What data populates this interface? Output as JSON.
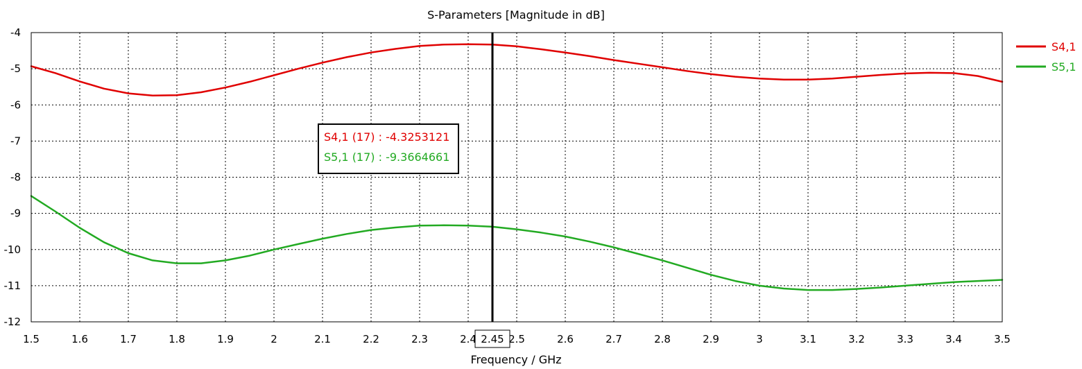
{
  "chart_data": {
    "type": "line",
    "title": "S-Parameters [Magnitude in dB]",
    "xlabel": "Frequency / GHz",
    "ylabel": "",
    "xlim": [
      1.5,
      3.5
    ],
    "ylim": [
      -12,
      -4
    ],
    "x_ticks": [
      1.5,
      1.6,
      1.7,
      1.8,
      1.9,
      2,
      2.1,
      2.2,
      2.3,
      2.4,
      2.5,
      2.6,
      2.7,
      2.8,
      2.9,
      3,
      3.1,
      3.2,
      3.3,
      3.4,
      3.5
    ],
    "x_tick_labels": [
      "1.5",
      "1.6",
      "1.7",
      "1.8",
      "1.9",
      "2",
      "2.1",
      "2.2",
      "2.3",
      "2.4",
      "2.5",
      "2.6",
      "2.7",
      "2.8",
      "2.9",
      "3",
      "3.1",
      "3.2",
      "3.3",
      "3.4",
      "3.5"
    ],
    "y_ticks": [
      -4,
      -5,
      -6,
      -7,
      -8,
      -9,
      -10,
      -11,
      -12
    ],
    "y_tick_labels": [
      "-4",
      "-5",
      "-6",
      "-7",
      "-8",
      "-9",
      "-10",
      "-11",
      "-12"
    ],
    "grid": true,
    "legend_position": "right",
    "series": [
      {
        "name": "S4,1",
        "color": "#e00000",
        "x": [
          1.5,
          1.55,
          1.6,
          1.65,
          1.7,
          1.75,
          1.8,
          1.85,
          1.9,
          1.95,
          2.0,
          2.05,
          2.1,
          2.15,
          2.2,
          2.25,
          2.3,
          2.35,
          2.4,
          2.45,
          2.5,
          2.55,
          2.6,
          2.65,
          2.7,
          2.75,
          2.8,
          2.85,
          2.9,
          2.95,
          3.0,
          3.05,
          3.1,
          3.15,
          3.2,
          3.25,
          3.3,
          3.35,
          3.4,
          3.45,
          3.5
        ],
        "values": [
          -4.93,
          -5.12,
          -5.35,
          -5.55,
          -5.68,
          -5.74,
          -5.73,
          -5.65,
          -5.52,
          -5.36,
          -5.18,
          -5.0,
          -4.83,
          -4.68,
          -4.55,
          -4.45,
          -4.37,
          -4.33,
          -4.32,
          -4.33,
          -4.38,
          -4.46,
          -4.55,
          -4.65,
          -4.76,
          -4.86,
          -4.96,
          -5.06,
          -5.15,
          -5.22,
          -5.27,
          -5.3,
          -5.3,
          -5.27,
          -5.22,
          -5.17,
          -5.13,
          -5.11,
          -5.12,
          -5.2,
          -5.36
        ]
      },
      {
        "name": "S5,1",
        "color": "#22aa22",
        "x": [
          1.5,
          1.55,
          1.6,
          1.65,
          1.7,
          1.75,
          1.8,
          1.85,
          1.9,
          1.95,
          2.0,
          2.05,
          2.1,
          2.15,
          2.2,
          2.25,
          2.3,
          2.35,
          2.4,
          2.45,
          2.5,
          2.55,
          2.6,
          2.65,
          2.7,
          2.75,
          2.8,
          2.85,
          2.9,
          2.95,
          3.0,
          3.05,
          3.1,
          3.15,
          3.2,
          3.25,
          3.3,
          3.35,
          3.4,
          3.45,
          3.5
        ],
        "values": [
          -8.52,
          -8.95,
          -9.4,
          -9.8,
          -10.1,
          -10.3,
          -10.38,
          -10.38,
          -10.3,
          -10.17,
          -10.0,
          -9.85,
          -9.7,
          -9.57,
          -9.46,
          -9.39,
          -9.34,
          -9.33,
          -9.34,
          -9.37,
          -9.44,
          -9.53,
          -9.64,
          -9.78,
          -9.94,
          -10.12,
          -10.3,
          -10.5,
          -10.7,
          -10.87,
          -11.0,
          -11.08,
          -11.12,
          -11.12,
          -11.09,
          -11.05,
          -11.0,
          -10.95,
          -10.9,
          -10.87,
          -10.84
        ]
      }
    ],
    "marker": {
      "x": 2.45,
      "x_label": "2.45",
      "lines": [
        {
          "text": "S4,1 (17) : -4.3253121",
          "color": "#e00000"
        },
        {
          "text": "S5,1 (17) : -9.3664661",
          "color": "#22aa22"
        }
      ]
    }
  }
}
